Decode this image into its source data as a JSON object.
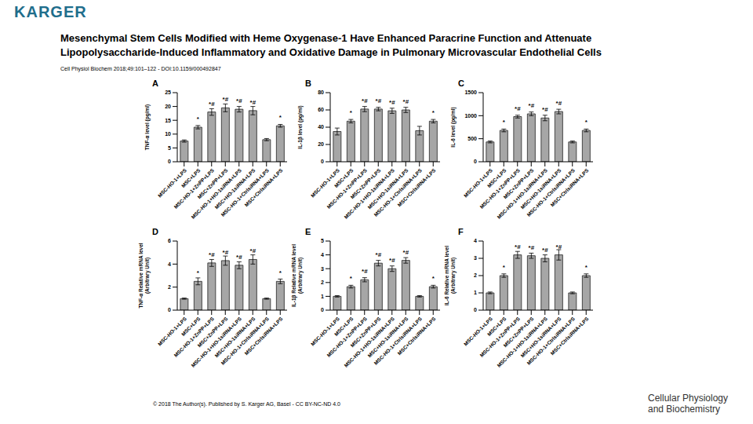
{
  "header": {
    "logo": "KARGER",
    "title": [
      "Mesenchymal Stem Cells Modified with Heme Oxygenase-1 Have Enhanced Paracrine Function and Attenuate",
      "Lipopolysaccharide-Induced Inflammatory and Oxidative Damage in Pulmonary Microvascular Endothelial Cells"
    ],
    "citation": "Cell Physiol Biochem 2018;49:101–122 - DOI:10.1159/000492847"
  },
  "footer": {
    "copyright": "© 2018 The Author(s). Published by S. Karger AG, Basel - CC BY-NC-ND 4.0",
    "journal": [
      "Cellular Physiology",
      "and Biochemistry"
    ]
  },
  "chart_data": [
    {
      "type": "bar",
      "panel": "A",
      "y_label": [
        "TNF-α level (pg/ml)"
      ],
      "categories": [
        "MSC-HO-1+LPS",
        "MSC+LPS",
        "MSC-HO-1+ZnPP+LPS",
        "MSC+ZnPP+LPS",
        "MSC-HO-1+HO-1siRNA+LPS",
        "MSC+HO-1siRNA+LPS",
        "MSC-HO-1+CtrlsiRNA+LPS",
        "MSC+CtrlsiRNA+LPS"
      ],
      "values": [
        7.5,
        12.5,
        18,
        19.5,
        19,
        18.5,
        8,
        13
      ],
      "errors": [
        0.4,
        0.6,
        1.2,
        1.4,
        1,
        1.5,
        0.4,
        0.5
      ],
      "annotations": [
        null,
        "*",
        "*#",
        "*#",
        "*#",
        "*#",
        null,
        "*"
      ],
      "ylim": [
        0,
        25
      ],
      "yticks": [
        0,
        5,
        10,
        15,
        20,
        25
      ],
      "color": "#a6a6a6"
    },
    {
      "type": "bar",
      "panel": "B",
      "y_label": [
        "IL-1β level (pg/ml)"
      ],
      "categories": [
        "MSC-HO-1+LPS",
        "MSC+LPS",
        "MSC-HO-1+ZnPP+LPS",
        "MSC+ZnPP+LPS",
        "MSC-HO-1+HO-1siRNA+LPS",
        "MSC+HO-1siRNA+LPS",
        "MSC-HO-1+CtrlsiRNA+LPS",
        "MSC+CtrlsiRNA+LPS"
      ],
      "values": [
        35,
        47,
        61,
        61,
        59,
        60,
        36,
        47
      ],
      "errors": [
        4,
        2,
        3,
        2,
        3,
        3,
        5,
        2
      ],
      "annotations": [
        null,
        "*",
        "*#",
        "*#",
        "*#",
        "*#",
        null,
        "*"
      ],
      "ylim": [
        0,
        80
      ],
      "yticks": [
        0,
        20,
        40,
        60,
        80
      ],
      "color": "#a6a6a6"
    },
    {
      "type": "bar",
      "panel": "C",
      "y_label": [
        "IL-6 level (pg/ml)"
      ],
      "categories": [
        "MSC-HO-1+LPS",
        "MSC+LPS",
        "MSC-HO-1+ZnPP+LPS",
        "MSC+ZnPP+LPS",
        "MSC-HO-1+HO-1siRNA+LPS",
        "MSC+HO-1siRNA+LPS",
        "MSC-HO-1+CtrlsiRNA+LPS",
        "MSC+CtrlsiRNA+LPS"
      ],
      "values": [
        430,
        680,
        980,
        1040,
        950,
        1090,
        430,
        680
      ],
      "errors": [
        20,
        30,
        30,
        40,
        60,
        50,
        20,
        30
      ],
      "annotations": [
        null,
        "*",
        "*#",
        "*#",
        "*#",
        "*#",
        null,
        "*"
      ],
      "ylim": [
        0,
        1500
      ],
      "yticks": [
        0,
        500,
        1000,
        1500
      ],
      "color": "#a6a6a6"
    },
    {
      "type": "bar",
      "panel": "D",
      "y_label": [
        "TNF-α Relative mRNA level",
        "(Arbitrary Unit)"
      ],
      "categories": [
        "MSC-HO-1+LPS",
        "MSC+LPS",
        "MSC-HO-1+ZnPP+LPS",
        "MSC+ZnPP+LPS",
        "MSC-HO-1+HO-1siRNA+LPS",
        "MSC+HO-1siRNA+LPS",
        "MSC-HO-1+CtrlsiRNA+LPS",
        "MSC+CtrlsiRNA+LPS"
      ],
      "values": [
        1,
        2.5,
        4.1,
        4.3,
        3.9,
        4.4,
        1,
        2.5
      ],
      "errors": [
        0.05,
        0.3,
        0.3,
        0.4,
        0.3,
        0.4,
        0.05,
        0.2
      ],
      "annotations": [
        null,
        "*",
        "*#",
        "*#",
        "*#",
        "*#",
        null,
        "*"
      ],
      "ylim": [
        0,
        6
      ],
      "yticks": [
        0,
        2,
        4,
        6
      ],
      "color": "#a6a6a6"
    },
    {
      "type": "bar",
      "panel": "E",
      "y_label": [
        "IL-1β Relative mRNA level",
        "(Arbitrary Unit)"
      ],
      "categories": [
        "MSC-HO-1+LPS",
        "MSC+LPS",
        "MSC-HO-1+ZnPP+LPS",
        "MSC+ZnPP+LPS",
        "MSC-HO-1+HO-1siRNA+LPS",
        "MSC+HO-1siRNA+LPS",
        "MSC-HO-1+CtrlsiRNA+LPS",
        "MSC+CtrlsiRNA+LPS"
      ],
      "values": [
        1,
        1.7,
        2.2,
        3.4,
        3,
        3.6,
        1,
        1.7
      ],
      "errors": [
        0.05,
        0.1,
        0.15,
        0.2,
        0.2,
        0.2,
        0.05,
        0.1
      ],
      "annotations": [
        null,
        "*",
        "*#",
        "*#",
        "*#",
        "*#",
        null,
        "*"
      ],
      "ylim": [
        0,
        5
      ],
      "yticks": [
        0,
        1,
        2,
        3,
        4,
        5
      ],
      "color": "#a6a6a6"
    },
    {
      "type": "bar",
      "panel": "F",
      "y_label": [
        "IL-6 Relative mRNA level",
        "(Arbitrary Unit)"
      ],
      "categories": [
        "MSC-HO-1+LPS",
        "MSC+LPS",
        "MSC-HO-1+ZnPP+LPS",
        "MSC+ZnPP+LPS",
        "MSC-HO-1+HO-1siRNA+LPS",
        "MSC+HO-1siRNA+LPS",
        "MSC-HO-1+CtrlsiRNA+LPS",
        "MSC+CtrlsiRNA+LPS"
      ],
      "values": [
        1,
        2,
        3.2,
        3.15,
        3,
        3.2,
        1,
        2
      ],
      "errors": [
        0.05,
        0.1,
        0.2,
        0.15,
        0.2,
        0.3,
        0.05,
        0.1
      ],
      "annotations": [
        null,
        "*",
        "*#",
        "*#",
        "*#",
        "*#",
        null,
        "*"
      ],
      "ylim": [
        0,
        4
      ],
      "yticks": [
        0,
        1,
        2,
        3,
        4
      ],
      "color": "#a6a6a6"
    }
  ]
}
